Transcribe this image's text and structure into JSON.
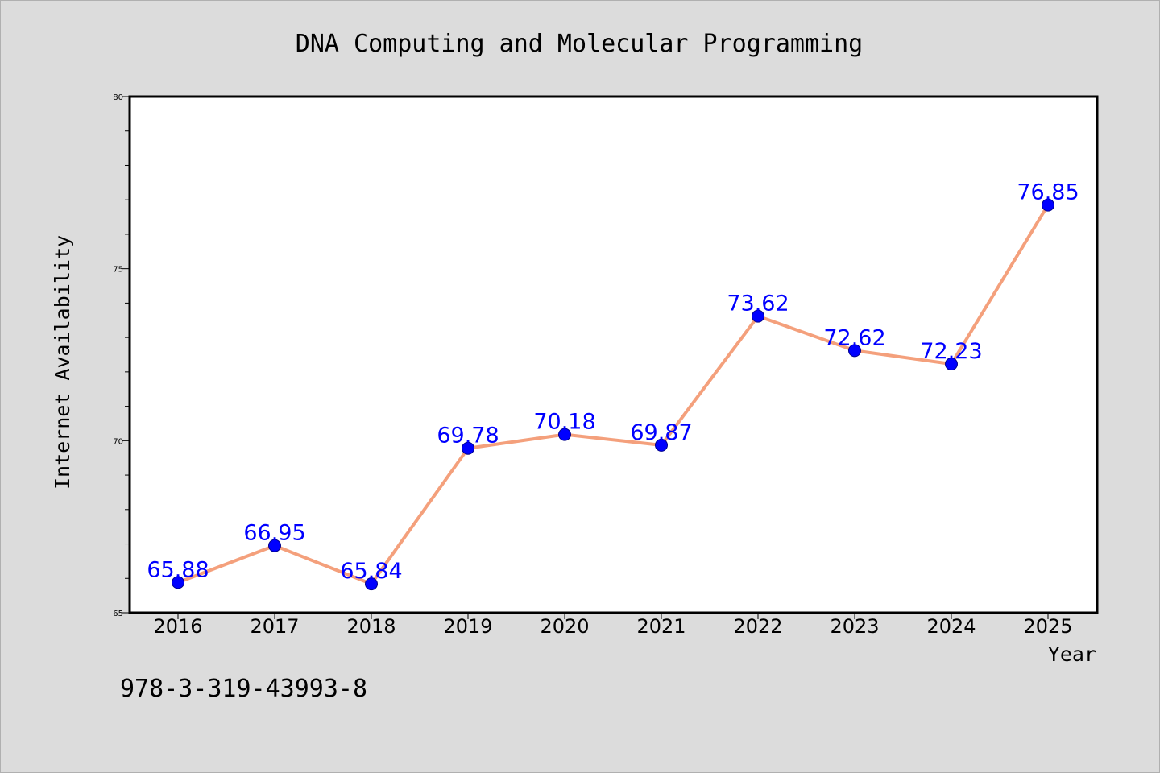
{
  "chart_data": {
    "type": "line",
    "title": "DNA Computing and Molecular Programming",
    "xlabel": "Year",
    "ylabel": "Internet Availability",
    "categories": [
      "2016",
      "2017",
      "2018",
      "2019",
      "2020",
      "2021",
      "2022",
      "2023",
      "2024",
      "2025"
    ],
    "series": [
      {
        "values": [
          65.88,
          66.95,
          65.84,
          69.78,
          70.18,
          69.87,
          73.62,
          72.62,
          72.23,
          76.85
        ],
        "line_color": "#f4a07c",
        "marker_color": "#0000ff"
      }
    ],
    "data_labels": [
      "65.88",
      "66.95",
      "65.84",
      "69.78",
      "70.18",
      "69.87",
      "73.62",
      "72.62",
      "72.23",
      "76.85"
    ],
    "ylim": [
      65,
      80
    ],
    "yticks": [
      "65",
      "70",
      "75",
      "80"
    ],
    "grid": false,
    "legend": "none"
  },
  "footnote": "978-3-319-43993-8"
}
